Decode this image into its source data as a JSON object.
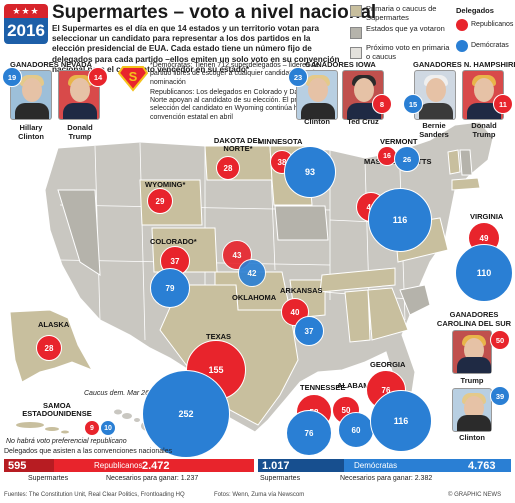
{
  "header": {
    "logo_top": "★★★",
    "logo_year": "2016",
    "title": "Supermartes – voto a nivel nacional",
    "intro": "El Supermartes es el día en que 14 estados y un territorio votan para seleccionar un candidato para representar a los dos partidos en la elección presidencial de EUA. Cada estado tiene un número fijo de delegados para cada partido –ellos emiten un solo voto en su convención nacional para el candidato vencedor en su estado*"
  },
  "legend": {
    "primary": "Primaria o caucus de Supermartes",
    "voted": "Estados que ya votaron",
    "next": "Próximo voto en primaria o caucus",
    "delegates_title": "Delegados",
    "republicans": "Republicanos",
    "democrats": "Demócratas",
    "colors": {
      "primary": "#c8bf9e",
      "voted": "#b5b3ab",
      "next": "#e3e1dc",
      "map_other": "#c9c7c1",
      "red": "#e8242c",
      "blue": "#2a7fd4"
    }
  },
  "notes": {
    "democrats": "*Demócratas: Tienen 712 superdelegados – líderes de partido libres de escoger a cualquier candidato para la nominación",
    "republicans": "Republicanos: Los delegados en Colorado y Dakota del Norte apoyan al candidato de su elección. El proceso de selección del candidato en Wyoming continúa hasta la convención estatal en abril"
  },
  "winners": {
    "nevada": {
      "title": "GANADORES NEVADA",
      "dem": {
        "name": "Hillary Clinton",
        "delegates": "19"
      },
      "rep": {
        "name": "Donald Trump",
        "delegates": "14"
      }
    },
    "iowa": {
      "title": "GANADORES IOWA",
      "dem": {
        "name": "Clinton",
        "delegates": "23"
      },
      "rep": {
        "name": "Ted Cruz",
        "delegates": "8"
      }
    },
    "nh": {
      "title": "GANADORES N. HAMPSHIRE",
      "dem": {
        "name": "Bernie Sanders",
        "delegates": "15"
      },
      "rep": {
        "name": "Donald Trump",
        "delegates": "11"
      }
    },
    "sc": {
      "title": "GANADORES CAROLINA DEL SUR",
      "rep": {
        "name": "Trump",
        "delegates": "50"
      },
      "dem": {
        "name": "Clinton",
        "delegates": "39"
      }
    }
  },
  "states": {
    "north_dakota": {
      "label": "DAKOTA DEL NORTE*",
      "rep": "28"
    },
    "minnesota": {
      "label": "MINNESOTA",
      "rep": "38",
      "dem": "93"
    },
    "wyoming": {
      "label": "WYOMING*",
      "rep": "29"
    },
    "colorado": {
      "label": "COLORADO*",
      "rep": "37",
      "dem": "79"
    },
    "oklahoma": {
      "label": "OKLAHOMA",
      "rep": "43",
      "dem": "42"
    },
    "arkansas": {
      "label": "ARKANSAS",
      "rep": "40",
      "dem": "37"
    },
    "texas": {
      "label": "TEXAS",
      "rep": "155",
      "dem": "252"
    },
    "vermont": {
      "label": "VERMONT",
      "rep": "16",
      "dem": "26"
    },
    "massachusetts": {
      "label": "MASSACHUSETTS",
      "rep": "42",
      "dem": "116"
    },
    "virginia": {
      "label": "VIRGINIA",
      "rep": "49",
      "dem": "110"
    },
    "tennessee": {
      "label": "TENNESSEE",
      "rep": "58",
      "dem": "76"
    },
    "alabama": {
      "label": "ALABAMA",
      "rep": "50",
      "dem": "60"
    },
    "georgia": {
      "label": "GEORGIA",
      "rep": "76",
      "dem": "116"
    },
    "alaska": {
      "label": "ALASKA",
      "rep": "28"
    },
    "samoa": {
      "label": "SAMOA ESTADOUNIDENSE",
      "rep": "9",
      "dem": "10"
    }
  },
  "map_notes": {
    "caucus": "Caucus dem. Mar 26",
    "samoa": "No habrá voto preferencial republicano"
  },
  "totals": {
    "label": "Delegados que asisten a las convenciones nacionales",
    "rep_super": "595",
    "rep_party": "Republicanos",
    "rep_total": "2.472",
    "rep_super_label": "Supermartes",
    "rep_needed": "Necesarios para ganar: 1.237",
    "dem_super": "1.017",
    "dem_party": "Demócratas",
    "dem_total": "4.763",
    "dem_super_label": "Supermartes",
    "dem_needed": "Necesarios para ganar: 2.382"
  },
  "footer": {
    "sources": "Fuentes: The Constitution Unit, Real Clear Politics, Frontloading HQ",
    "photos": "Fotos: Wenn, Zuma vía Newscom",
    "brand": "© GRAPHIC NEWS"
  }
}
